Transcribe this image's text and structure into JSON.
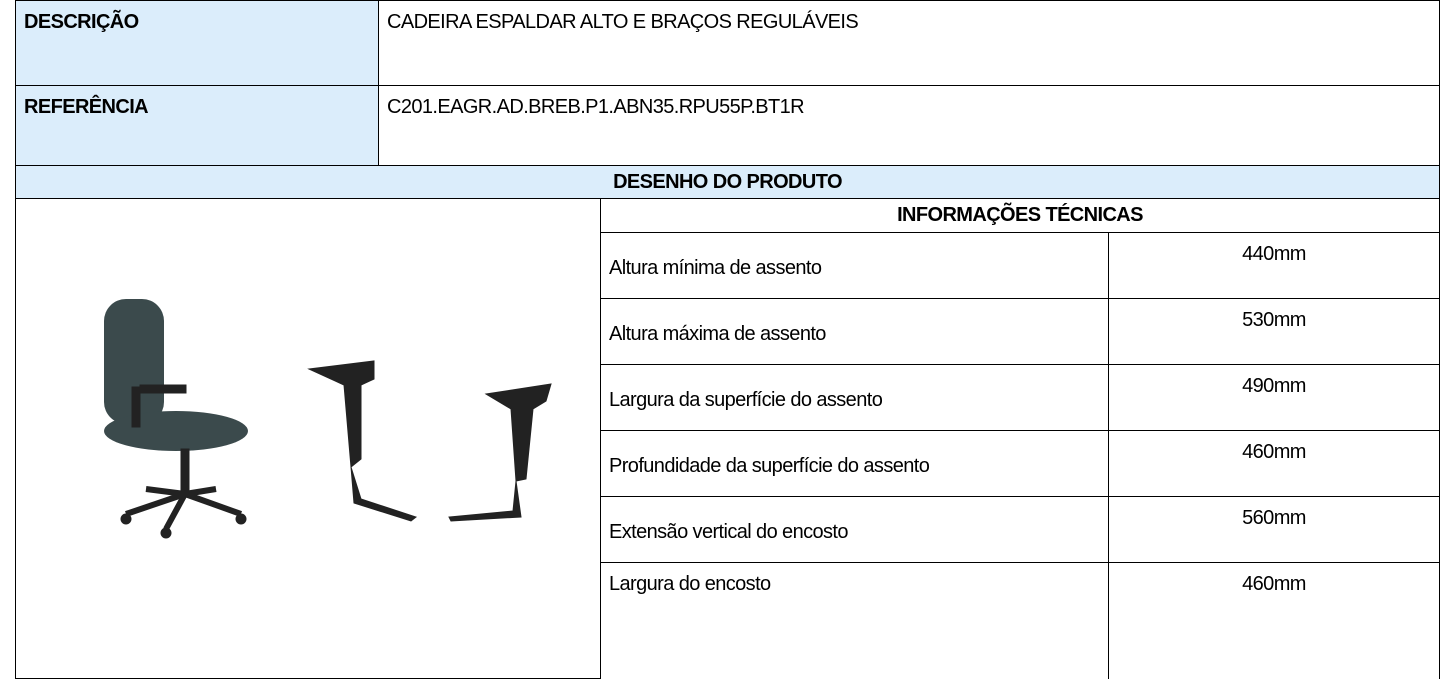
{
  "description": {
    "label": "DESCRIÇÃO",
    "value": "CADEIRA ESPALDAR ALTO E BRAÇOS REGULÁVEIS"
  },
  "reference": {
    "label": "REFERÊNCIA",
    "value": "C201.EAGR.AD.BREB.P1.ABN35.RPU55P.BT1R"
  },
  "drawing_header": "DESENHO DO PRODUTO",
  "technical_info": {
    "title": "INFORMAÇÕES TÉCNICAS",
    "rows": [
      [
        "Altura mínima de assento",
        "440mm"
      ],
      [
        "Altura máxima de assento",
        "530mm"
      ],
      [
        "Largura da superfície do assento",
        "490mm"
      ],
      [
        "Profundidade da superfície do assento",
        "460mm"
      ],
      [
        "Extensão vertical do encosto",
        "560mm"
      ],
      [
        "Largura do encosto",
        "460mm"
      ]
    ]
  }
}
